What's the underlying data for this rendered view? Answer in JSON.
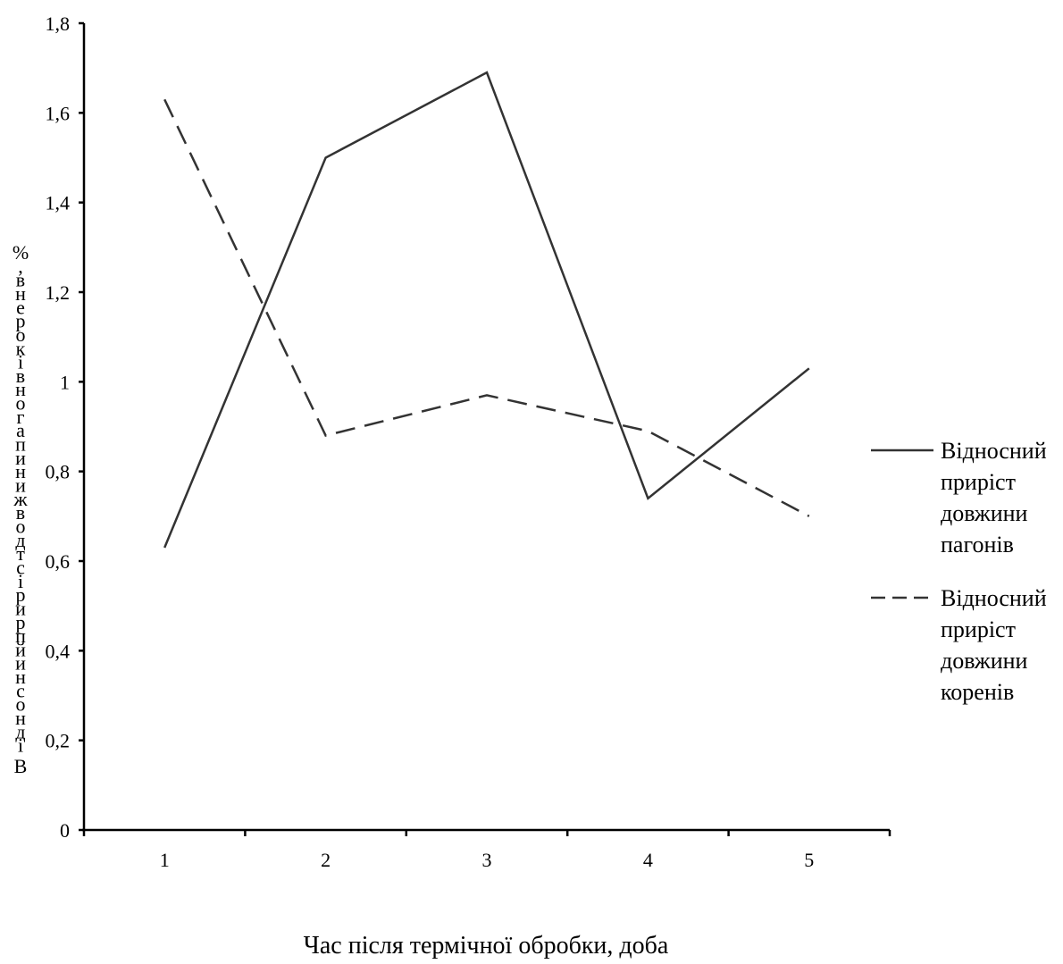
{
  "chart_data": {
    "type": "line",
    "x": [
      "1",
      "2",
      "3",
      "4",
      "5"
    ],
    "series": [
      {
        "name": "Відносний приріст довжини пагонів",
        "name_lines": [
          "Відносний",
          "приріст",
          "довжини",
          "пагонів"
        ],
        "values": [
          0.63,
          1.5,
          1.69,
          0.74,
          1.03
        ],
        "line_style": "solid",
        "color": "#333333"
      },
      {
        "name": "Відносний приріст довжини коренів",
        "name_lines": [
          "Відносний",
          "приріст",
          "довжини",
          "коренів"
        ],
        "values": [
          1.63,
          0.88,
          0.97,
          0.89,
          0.7
        ],
        "line_style": "dashed",
        "color": "#333333"
      }
    ],
    "xlabel": "Час після термічної обробки, доба",
    "ylabel_chars": [
      "%",
      ",",
      "в",
      "н",
      "е",
      "р",
      "о",
      "к",
      "і",
      "в",
      "н",
      "о",
      "г",
      "а",
      "п",
      "и",
      "н",
      "и",
      "ж",
      "в",
      "о",
      "д",
      "т",
      "с",
      "і",
      "р",
      "и",
      "р",
      "п",
      "й",
      "и",
      "н",
      "с",
      "о",
      "н",
      "д",
      "і",
      "В"
    ],
    "ylim": [
      0,
      1.8
    ],
    "yticks": [
      "0",
      "0,2",
      "0,4",
      "0,6",
      "0,8",
      "1",
      "1,2",
      "1,4",
      "1,6",
      "1,8"
    ],
    "grid": false,
    "legend_position": "right"
  }
}
